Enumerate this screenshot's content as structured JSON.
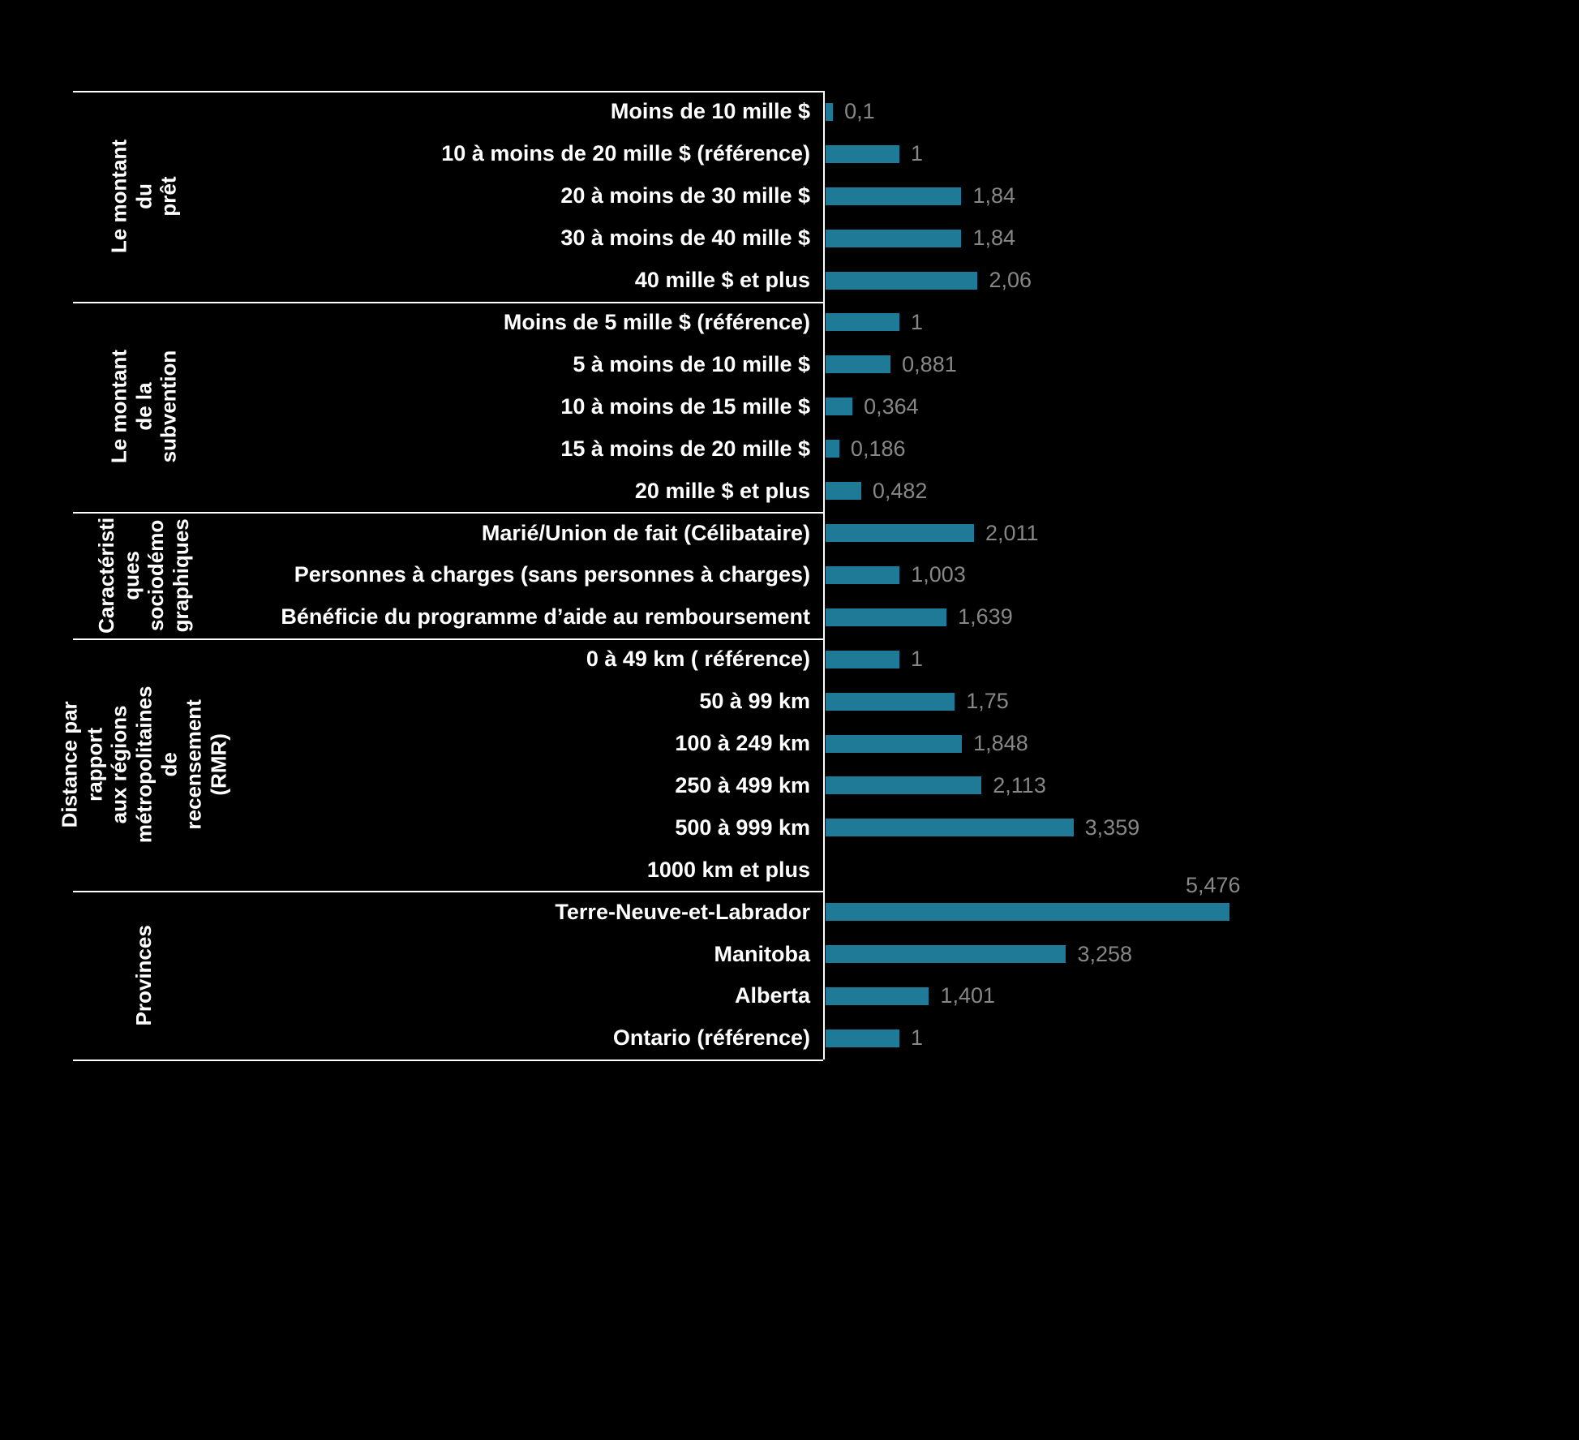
{
  "page": {
    "background": "#000000"
  },
  "chart_data": {
    "type": "bar",
    "orientation": "horizontal",
    "title": "",
    "bar_color": "#1F7A98",
    "category_label_color": "#FFFFFF",
    "value_label_color": "#878787",
    "axis_line_color": "#FFFFFF",
    "xlim": [
      0,
      5.6
    ],
    "grid": false,
    "legend": false,
    "sections": [
      {
        "name": "Le montant du prêt",
        "label_lines": "Le montant du\nprêt",
        "rows": [
          {
            "label": "Moins de 10 mille $",
            "value": 0.1,
            "value_label": "0,1"
          },
          {
            "label": "10 à moins de 20 mille $ (référence)",
            "value": 1,
            "value_label": "1"
          },
          {
            "label": "20 à moins de 30 mille $",
            "value": 1.84,
            "value_label": "1,84"
          },
          {
            "label": "30 à moins de 40 mille $",
            "value": 1.84,
            "value_label": "1,84"
          },
          {
            "label": "40 mille $ et plus",
            "value": 2.06,
            "value_label": "2,06"
          }
        ]
      },
      {
        "name": "Le montant de la subvention",
        "label_lines": "Le montant de la\nsubvention",
        "rows": [
          {
            "label": "Moins de 5 mille $ (référence)",
            "value": 1,
            "value_label": "1"
          },
          {
            "label": "5 à moins de 10 mille $",
            "value": 0.881,
            "value_label": "0,881"
          },
          {
            "label": "10 à moins de 15 mille $",
            "value": 0.364,
            "value_label": "0,364"
          },
          {
            "label": "15 à moins de 20 mille $",
            "value": 0.186,
            "value_label": "0,186"
          },
          {
            "label": "20 mille $ et plus",
            "value": 0.482,
            "value_label": "0,482"
          }
        ]
      },
      {
        "name": "Caractéristiques sociodémographiques",
        "label_lines": "Caractéristi\nques\nsociodémo\ngraphiques",
        "rows": [
          {
            "label": "Marié/Union de fait (Célibataire)",
            "value": 2.011,
            "value_label": "2,011"
          },
          {
            "label": "Personnes à charges (sans personnes à charges)",
            "value": 1.003,
            "value_label": "1,003"
          },
          {
            "label": "Bénéficie du programme d’aide au remboursement",
            "value": 1.639,
            "value_label": "1,639"
          }
        ]
      },
      {
        "name": "Distance par rapport aux régions métropolitaines de recensement (RMR)",
        "label_lines": "Distance par rapport\naux régions\nmétropolitaines de\nrecensement (RMR)",
        "rows": [
          {
            "label": "0 à 49 km ( référence)",
            "value": 1,
            "value_label": "1"
          },
          {
            "label": "50 à 99 km",
            "value": 1.75,
            "value_label": "1,75"
          },
          {
            "label": "100 à 249 km",
            "value": 1.848,
            "value_label": "1,848"
          },
          {
            "label": "250 à 499 km",
            "value": 2.113,
            "value_label": "2,113"
          },
          {
            "label": "500 à 999 km",
            "value": 3.359,
            "value_label": "3,359"
          },
          {
            "label": "1000 km et plus",
            "value": null,
            "value_label": ""
          }
        ]
      },
      {
        "name": "Provinces",
        "label_lines": "Provinces",
        "rows": [
          {
            "label": "Terre-Neuve-et-Labrador",
            "value": 5.476,
            "value_label": "5,476",
            "value_label_position": "above-end"
          },
          {
            "label": "Manitoba",
            "value": 3.258,
            "value_label": "3,258"
          },
          {
            "label": "Alberta",
            "value": 1.401,
            "value_label": "1,401"
          },
          {
            "label": "Ontario (référence)",
            "value": 1,
            "value_label": "1"
          }
        ]
      }
    ]
  }
}
